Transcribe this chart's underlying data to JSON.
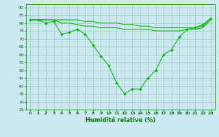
{
  "title": "",
  "xlabel": "Humidité relative (%)",
  "ylabel": "",
  "background_color": "#cce8f0",
  "grid_color": "#99ccbb",
  "line_color": "#00bb00",
  "xlim": [
    -0.5,
    23.5
  ],
  "ylim": [
    25,
    92
  ],
  "yticks": [
    25,
    30,
    35,
    40,
    45,
    50,
    55,
    60,
    65,
    70,
    75,
    80,
    85,
    90
  ],
  "xticks": [
    0,
    1,
    2,
    3,
    4,
    5,
    6,
    7,
    8,
    9,
    10,
    11,
    12,
    13,
    14,
    15,
    16,
    17,
    18,
    19,
    20,
    21,
    22,
    23
  ],
  "curve1": [
    82,
    82,
    80,
    81,
    73,
    74,
    76,
    73,
    66,
    59,
    53,
    42,
    35,
    38,
    38,
    45,
    50,
    60,
    63,
    71,
    76,
    77,
    79,
    83
  ],
  "curve2": [
    82,
    82,
    82,
    82,
    82,
    82,
    82,
    81,
    81,
    80,
    80,
    80,
    79,
    79,
    78,
    78,
    77,
    77,
    77,
    77,
    77,
    77,
    78,
    83
  ],
  "curve3": [
    82,
    82,
    82,
    82,
    80,
    80,
    79,
    78,
    78,
    77,
    77,
    77,
    76,
    76,
    76,
    76,
    75,
    75,
    75,
    75,
    76,
    76,
    77,
    82
  ]
}
